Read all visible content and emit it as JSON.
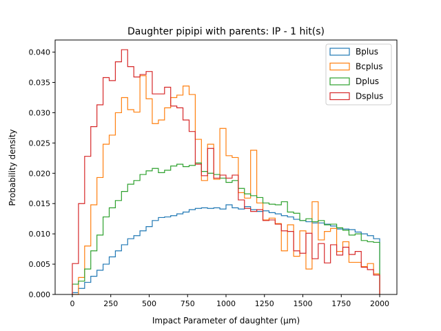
{
  "chart_data": {
    "type": "histogram-step",
    "title": "Daughter pipipi with parents: IP - 1 hit(s)",
    "xlabel": "Impact Parameter of daughter (μm)",
    "ylabel": "Probability density",
    "xlim": [
      -112,
      2112
    ],
    "ylim": [
      0,
      0.042
    ],
    "xticks": [
      0,
      250,
      500,
      750,
      1000,
      1250,
      1500,
      1750,
      2000
    ],
    "xtick_labels": [
      "0",
      "250",
      "500",
      "750",
      "1000",
      "1250",
      "1500",
      "1750",
      "2000"
    ],
    "yticks": [
      0,
      0.005,
      0.01,
      0.015,
      0.02,
      0.025,
      0.03,
      0.035,
      0.04
    ],
    "ytick_labels": [
      "0.000",
      "0.005",
      "0.010",
      "0.015",
      "0.020",
      "0.025",
      "0.030",
      "0.035",
      "0.040"
    ],
    "bin_edges_start": 0,
    "bin_edges_end": 2000,
    "n_bins": 50,
    "legend_position": "top-right",
    "series": [
      {
        "name": "Bplus",
        "color": "#1f77b4",
        "values": [
          0.0003,
          0.001,
          0.002,
          0.003,
          0.004,
          0.005,
          0.0062,
          0.0072,
          0.0082,
          0.0092,
          0.0097,
          0.0105,
          0.0112,
          0.0122,
          0.0127,
          0.0128,
          0.013,
          0.0133,
          0.0136,
          0.014,
          0.0142,
          0.0143,
          0.0142,
          0.0143,
          0.0141,
          0.0148,
          0.0143,
          0.0141,
          0.0145,
          0.014,
          0.0137,
          0.0138,
          0.0135,
          0.0133,
          0.013,
          0.0128,
          0.0124,
          0.0122,
          0.012,
          0.0118,
          0.0118,
          0.0116,
          0.0113,
          0.0108,
          0.0108,
          0.0107,
          0.0103,
          0.01,
          0.0097,
          0.0092
        ]
      },
      {
        "name": "Bcplus",
        "color": "#ff7f0e",
        "values": [
          0.0,
          0.0028,
          0.008,
          0.0148,
          0.0193,
          0.0248,
          0.0263,
          0.03,
          0.0325,
          0.0305,
          0.0301,
          0.0361,
          0.0323,
          0.0282,
          0.0288,
          0.0308,
          0.0325,
          0.0329,
          0.0344,
          0.033,
          0.0256,
          0.0188,
          0.0248,
          0.019,
          0.0274,
          0.0229,
          0.0226,
          0.0168,
          0.0159,
          0.0238,
          0.0151,
          0.0123,
          0.0126,
          0.0117,
          0.0072,
          0.0115,
          0.0063,
          0.0105,
          0.0042,
          0.0153,
          0.009,
          0.0104,
          0.0109,
          0.0071,
          0.0087,
          0.0053,
          0.0053,
          0.0046,
          0.0051,
          0.0034
        ]
      },
      {
        "name": "Dplus",
        "color": "#2ca02c",
        "values": [
          0.0017,
          0.0022,
          0.0042,
          0.0072,
          0.0098,
          0.0128,
          0.0143,
          0.0155,
          0.017,
          0.0182,
          0.0188,
          0.0198,
          0.0204,
          0.0208,
          0.0201,
          0.0205,
          0.0212,
          0.0215,
          0.0211,
          0.0213,
          0.0217,
          0.0203,
          0.02,
          0.0198,
          0.0192,
          0.0185,
          0.0188,
          0.0175,
          0.0166,
          0.0163,
          0.016,
          0.0151,
          0.0149,
          0.0148,
          0.0153,
          0.0136,
          0.0134,
          0.0122,
          0.0125,
          0.012,
          0.0122,
          0.0115,
          0.0116,
          0.011,
          0.0106,
          0.0098,
          0.01,
          0.0089,
          0.0087,
          0.0086
        ]
      },
      {
        "name": "Dsplus",
        "color": "#d62728",
        "values": [
          0.0051,
          0.015,
          0.0228,
          0.0277,
          0.0313,
          0.0358,
          0.0353,
          0.0384,
          0.0404,
          0.0376,
          0.0359,
          0.0363,
          0.0368,
          0.0331,
          0.0331,
          0.0342,
          0.0311,
          0.0308,
          0.0288,
          0.0269,
          0.0215,
          0.0196,
          0.0241,
          0.0192,
          0.0197,
          0.0192,
          0.0197,
          0.0156,
          0.0142,
          0.0137,
          0.014,
          0.0122,
          0.0123,
          0.0116,
          0.0105,
          0.0104,
          0.0072,
          0.0068,
          0.0101,
          0.0059,
          0.0084,
          0.0052,
          0.0082,
          0.0065,
          0.0078,
          0.0066,
          0.0071,
          0.0045,
          0.0041,
          0.0032
        ]
      }
    ]
  }
}
